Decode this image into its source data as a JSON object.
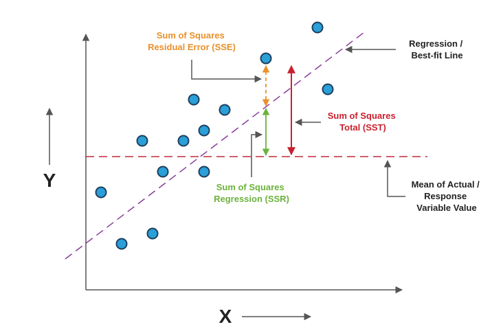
{
  "colors": {
    "axis": "#555555",
    "point_fill": "#2a9fd8",
    "point_stroke": "#1f3f5c",
    "regression_line": "#8a3d99",
    "mean_line": "#c0283a",
    "sse": "#e8902a",
    "sst": "#c8202e",
    "ssr": "#6bb33c",
    "text_dark": "#222222",
    "pointer": "#555555"
  },
  "axes": {
    "x_label": "X",
    "y_label": "Y"
  },
  "labels": {
    "sse": [
      "Sum of Squares",
      "Residual Error (SSE)"
    ],
    "sst": [
      "Sum of Squares",
      "Total (SST)"
    ],
    "ssr": [
      "Sum of Squares",
      "Regression (SSR)"
    ],
    "regression": [
      "Regression /",
      "Best-fit Line"
    ],
    "mean": [
      "Mean of Actual /",
      "Response",
      "Variable Value"
    ]
  },
  "icons": {
    "point": "filled-circle",
    "pointer": "arrow-icon"
  }
}
